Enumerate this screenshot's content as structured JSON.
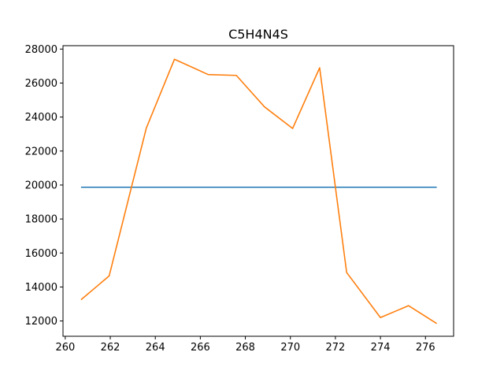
{
  "chart_data": {
    "type": "line",
    "title": "C5H4N4S",
    "xlabel": "",
    "ylabel": "",
    "xlim": [
      259.9,
      277.25
    ],
    "ylim": [
      11100,
      28200
    ],
    "xticks": [
      260,
      262,
      264,
      266,
      268,
      270,
      272,
      274,
      276
    ],
    "yticks": [
      12000,
      14000,
      16000,
      18000,
      20000,
      22000,
      24000,
      26000,
      28000
    ],
    "grid": false,
    "series": [
      {
        "color": "#1f77b4",
        "x": [
          260.7,
          276.5
        ],
        "y": [
          19870,
          19870
        ]
      },
      {
        "color": "#ff7f0e",
        "x": [
          260.7,
          261.95,
          263.6,
          264.85,
          266.35,
          267.6,
          268.85,
          270.1,
          271.3,
          272.5,
          274.0,
          275.25,
          276.5
        ],
        "y": [
          13250,
          14650,
          23350,
          27400,
          26500,
          26450,
          24600,
          23330,
          26900,
          14850,
          12200,
          12900,
          11850
        ]
      }
    ]
  }
}
